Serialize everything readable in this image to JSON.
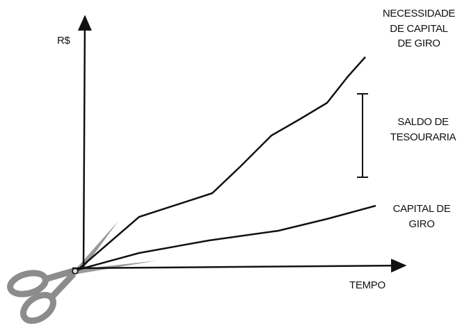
{
  "y_axis_label": "R$",
  "x_axis_label": "TEMPO",
  "curves": [
    {
      "label_lines": [
        "NECESSIDADE",
        "DE CAPITAL",
        "DE GIRO"
      ]
    },
    {
      "label_lines": [
        "CAPITAL DE",
        "GIRO"
      ]
    }
  ],
  "bracket": {
    "label_lines": [
      "SALDO DE",
      "TESOURARIA"
    ]
  }
}
